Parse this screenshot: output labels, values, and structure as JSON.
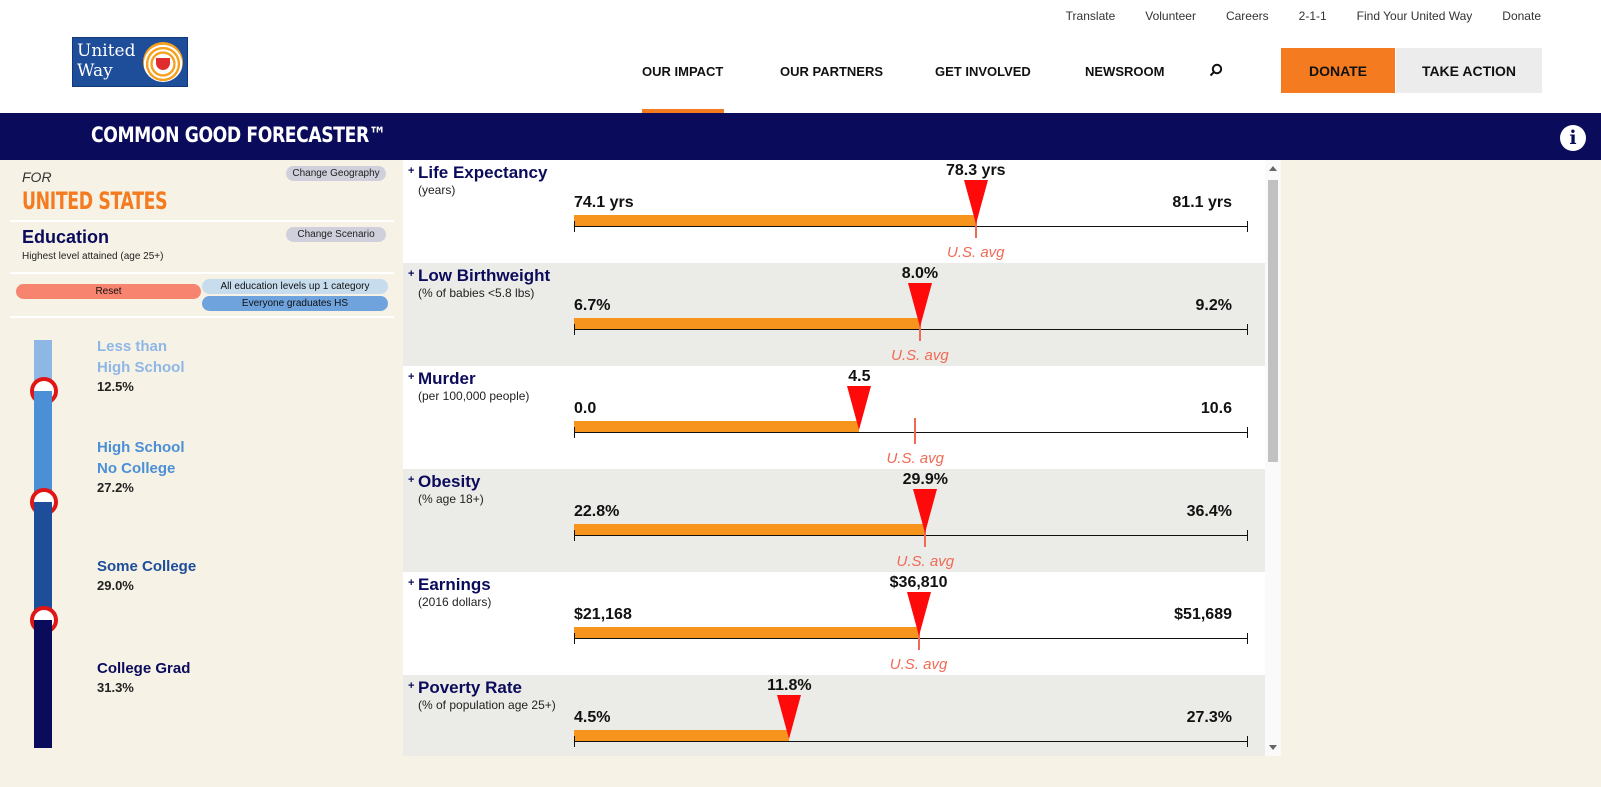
{
  "utility_nav": [
    "Translate",
    "Volunteer",
    "Careers",
    "2-1-1",
    "Find Your United Way",
    "Donate"
  ],
  "logo": {
    "line1": "United",
    "line2": "Way"
  },
  "main_nav": {
    "impact": "OUR IMPACT",
    "partners": "OUR PARTNERS",
    "involved": "GET INVOLVED",
    "newsroom": "NEWSROOM"
  },
  "buttons": {
    "donate": "DONATE",
    "take_action": "TAKE ACTION"
  },
  "banner": {
    "title": "COMMON GOOD FORECASTER™",
    "info_icon": "i"
  },
  "geography": {
    "for_label": "FOR",
    "name": "UNITED STATES",
    "change_button": "Change Geography"
  },
  "scenario": {
    "title": "Education",
    "subtitle": "Highest level attained (age 25+)",
    "change_button": "Change Scenario",
    "reset": "Reset",
    "options": [
      "All education levels up 1 category",
      "Everyone graduates HS"
    ]
  },
  "education_levels": [
    {
      "line1": "Less than",
      "line2": "High School",
      "pct": "12.5%",
      "color": "#8fb7e6"
    },
    {
      "line1": "High School",
      "line2": "No College",
      "pct": "27.2%",
      "color": "#4b8fd6"
    },
    {
      "line1": "Some College",
      "line2": "",
      "pct": "29.0%",
      "color": "#1e4d9a"
    },
    {
      "line1": "College Grad",
      "line2": "",
      "pct": "31.3%",
      "color": "#0b0b5c"
    }
  ],
  "avg_label": "U.S. avg",
  "metrics": [
    {
      "name": "Life Expectancy",
      "unit": "(years)",
      "low": "74.1 yrs",
      "high": "81.1 yrs",
      "current": "78.3 yrs",
      "current_frac": 0.597,
      "avg_frac": 0.597,
      "show_avg_label": true
    },
    {
      "name": "Low Birthweight",
      "unit": "(% of babies <5.8 lbs)",
      "low": "6.7%",
      "high": "9.2%",
      "current": "8.0%",
      "current_frac": 0.514,
      "avg_frac": 0.514,
      "show_avg_label": true
    },
    {
      "name": "Murder",
      "unit": "(per 100,000 people)",
      "low": "0.0",
      "high": "10.6",
      "current": "4.5",
      "current_frac": 0.424,
      "avg_frac": 0.507,
      "show_avg_label": true
    },
    {
      "name": "Obesity",
      "unit": "(% age 18+)",
      "low": "22.8%",
      "high": "36.4%",
      "current": "29.9%",
      "current_frac": 0.522,
      "avg_frac": 0.522,
      "show_avg_label": true
    },
    {
      "name": "Earnings",
      "unit": "(2016 dollars)",
      "low": "$21,168",
      "high": "$51,689",
      "current": "$36,810",
      "current_frac": 0.512,
      "avg_frac": 0.512,
      "show_avg_label": true
    },
    {
      "name": "Poverty Rate",
      "unit": "(% of population age 25+)",
      "low": "4.5%",
      "high": "27.3%",
      "current": "11.8%",
      "current_frac": 0.32,
      "avg_frac": null,
      "show_avg_label": false
    }
  ],
  "colors": {
    "orange": "#f47b20",
    "navy": "#0b0b5c",
    "marker": "#ff0a0a",
    "avg": "#f06a55",
    "bar": "#f7941d"
  }
}
